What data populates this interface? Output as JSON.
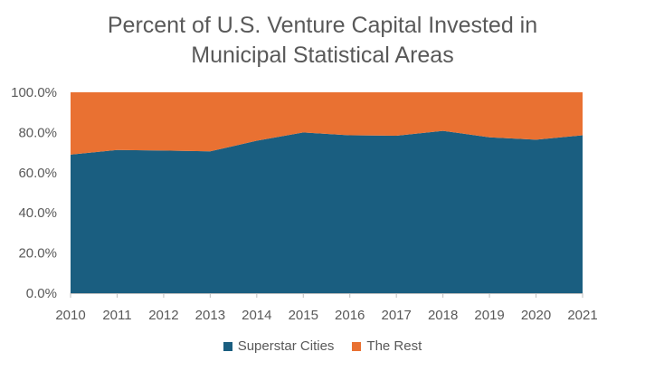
{
  "chart_data": {
    "type": "area",
    "stacked": true,
    "title": "Percent of U.S. Venture Capital Invested in Municipal Statistical Areas",
    "title_lines": [
      "Percent of U.S. Venture Capital Invested in",
      "Municipal Statistical Areas"
    ],
    "x": [
      "2010",
      "2011",
      "2012",
      "2013",
      "2014",
      "2015",
      "2016",
      "2017",
      "2018",
      "2019",
      "2020",
      "2021"
    ],
    "series": [
      {
        "name": "Superstar Cities",
        "color": "#1a5e80",
        "values": [
          69.0,
          71.3,
          71.0,
          70.6,
          75.9,
          80.0,
          78.6,
          78.4,
          80.8,
          77.6,
          76.4,
          78.6
        ]
      },
      {
        "name": "The Rest",
        "color": "#e97132",
        "values": [
          31.0,
          28.7,
          29.0,
          29.4,
          24.1,
          20.0,
          21.4,
          21.6,
          19.2,
          22.4,
          23.6,
          21.4
        ]
      }
    ],
    "y_ticks": [
      "0.0%",
      "20.0%",
      "40.0%",
      "60.0%",
      "80.0%",
      "100.0%"
    ],
    "ylim": [
      0,
      100
    ],
    "xlabel": "",
    "ylabel": "",
    "grid": false,
    "legend_position": "bottom"
  }
}
